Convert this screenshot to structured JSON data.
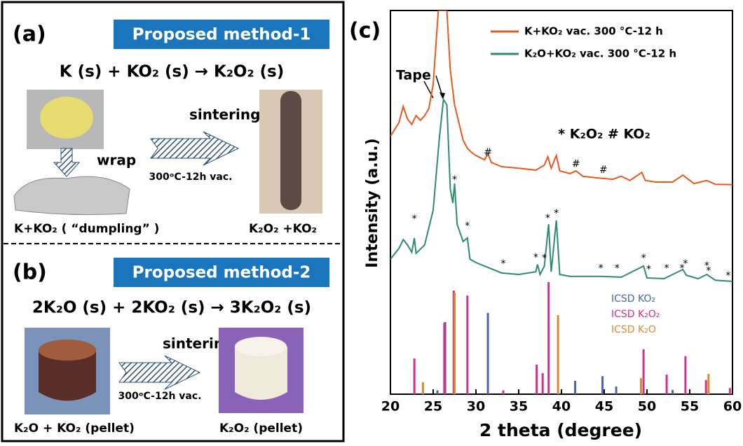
{
  "panels": {
    "a": {
      "label": "(a)",
      "title": "Proposed method-1",
      "equation": "K (s) + KO₂ (s) → K₂O₂ (s)",
      "wrap": "wrap",
      "step": "sintering",
      "condition": "300ᵒC-12h vac.",
      "left_caption": "K+KO₂ ( “dumpling” )",
      "right_caption": "K₂O₂ +KO₂"
    },
    "b": {
      "label": "(b)",
      "title": "Proposed method-2",
      "equation": "2K₂O (s) + 2KO₂ (s) → 3K₂O₂ (s)",
      "step": "sintering",
      "condition": "300ᵒC-12h vac.",
      "left_caption": "K₂O + KO₂ (pellet)",
      "right_caption": "K₂O₂ (pellet)"
    }
  },
  "chart_data": {
    "type": "line",
    "label": "(c)",
    "x_label": "2 theta (degree)",
    "y_label": "Intensity (a.u.)",
    "xlim": [
      20,
      60
    ],
    "xticks": [
      20,
      25,
      30,
      35,
      40,
      45,
      50,
      55,
      60
    ],
    "ylim": [
      0,
      100
    ],
    "legend": "top-right",
    "series": [
      {
        "name": "K+KO₂ vac. 300 °C-12 h",
        "color": "#e8591f",
        "x": [
          20,
          21,
          21.5,
          22,
          22.5,
          23,
          23.5,
          24,
          24.5,
          25,
          25.6,
          26.6,
          27,
          27.5,
          28,
          28.5,
          29,
          29.5,
          30,
          31,
          31.4,
          31.8,
          33,
          35,
          37,
          38,
          38.4,
          38.8,
          39.4,
          39.8,
          41,
          41.7,
          42.5,
          44,
          46,
          47,
          48,
          49.4,
          49.8,
          51,
          53,
          54.2,
          54.6,
          55.5,
          57,
          58,
          60
        ],
        "values": [
          67.2,
          70.8,
          75.0,
          71.7,
          70.3,
          72.6,
          71.4,
          72.6,
          74.5,
          80.8,
          100,
          100,
          84.5,
          75.4,
          70.8,
          66.2,
          64.1,
          63.0,
          62.2,
          61.1,
          62.6,
          60.4,
          59.3,
          58.9,
          58.4,
          59.7,
          61.9,
          58.9,
          62.2,
          58.2,
          57.5,
          58.2,
          56.8,
          56.4,
          56.0,
          56.8,
          55.7,
          57.8,
          55.7,
          55.3,
          55.3,
          57.1,
          56.4,
          54.9,
          55.7,
          54.7,
          54.6
        ]
      },
      {
        "name": "K₂O+KO₂ vac. 300 °C-12 h",
        "color": "#2e8b6e",
        "x": [
          20,
          21,
          21.5,
          22,
          22.5,
          22.8,
          23,
          24,
          25,
          25.7,
          26.2,
          26.6,
          27,
          27.3,
          27.5,
          27.8,
          28.5,
          29,
          29.3,
          30,
          32,
          33,
          35,
          37,
          37.2,
          37.5,
          38,
          38.5,
          38.8,
          39.4,
          39.8,
          41,
          44,
          44.6,
          47,
          49.6,
          50,
          52,
          54.2,
          54.6,
          56,
          57,
          58,
          60
        ],
        "values": [
          35.2,
          38.0,
          40.3,
          38.9,
          37.0,
          40.7,
          36.7,
          38.9,
          48.0,
          66.2,
          76.8,
          75.4,
          53.5,
          49.8,
          54.9,
          44.3,
          39.8,
          40.7,
          35.2,
          34.3,
          32.5,
          31.6,
          31.2,
          31.9,
          33.8,
          31.2,
          33.4,
          44.3,
          31.9,
          45.3,
          31.2,
          30.7,
          30.7,
          30.7,
          30.5,
          33.4,
          30.3,
          30.1,
          32.5,
          31.0,
          30.1,
          31.2,
          29.7,
          29.4
        ]
      }
    ],
    "references": [
      {
        "name": "ICSD KO₂",
        "color": "#4a66a8",
        "x": [
          25.5,
          26.4,
          31.4,
          41.6,
          44.8,
          46.4,
          53,
          57.2
        ],
        "values": [
          1,
          18.8,
          21.2,
          3.5,
          4.7,
          2,
          1.1,
          1
        ]
      },
      {
        "name": "ICSD K₂O₂",
        "color": "#d0308f",
        "x": [
          22.8,
          26.3,
          27.4,
          29,
          33.2,
          37.1,
          37.8,
          38.5,
          49.6,
          52.3,
          54.5,
          56.9,
          59.7
        ],
        "values": [
          9.3,
          18.6,
          27,
          25.7,
          1,
          7.7,
          5.5,
          29.2,
          11.7,
          5.1,
          9.9,
          3.7,
          1.6
        ]
      },
      {
        "name": "ICSD K₂O",
        "color": "#d98a2e",
        "x": [
          23.8,
          27.5,
          39.6,
          49.3,
          57.2
        ],
        "values": [
          3.1,
          26.5,
          20.6,
          4.2,
          5.3
        ]
      }
    ],
    "annotations": [
      {
        "text": "Tape",
        "x": 22.7,
        "y": 83.0
      },
      {
        "text": "* K₂O₂  # KO₂",
        "x": 45.0,
        "y": 67.7
      },
      {
        "text": "#",
        "x": 31.4,
        "y": 63.0
      },
      {
        "text": "#",
        "x": 41.7,
        "y": 59.9
      },
      {
        "text": "#",
        "x": 44.9,
        "y": 58.4
      },
      {
        "text": "*",
        "x": 22.8,
        "y": 45.6
      },
      {
        "text": "*",
        "x": 27.5,
        "y": 55.8
      },
      {
        "text": "*",
        "x": 29,
        "y": 43.8
      },
      {
        "text": "*",
        "x": 33.2,
        "y": 33.9
      },
      {
        "text": "*",
        "x": 37,
        "y": 35.6
      },
      {
        "text": "*",
        "x": 38,
        "y": 35.4
      },
      {
        "text": "*",
        "x": 38.4,
        "y": 45.8
      },
      {
        "text": "*",
        "x": 39.4,
        "y": 47.1
      },
      {
        "text": "*",
        "x": 44.6,
        "y": 32.8
      },
      {
        "text": "*",
        "x": 46.5,
        "y": 32.8
      },
      {
        "text": "*",
        "x": 49.6,
        "y": 35.4
      },
      {
        "text": "*",
        "x": 50.2,
        "y": 32.5
      },
      {
        "text": "*",
        "x": 52.3,
        "y": 32.8
      },
      {
        "text": "*",
        "x": 54.1,
        "y": 32.8
      },
      {
        "text": "*",
        "x": 54.5,
        "y": 33.9
      },
      {
        "text": "*",
        "x": 57,
        "y": 33.4
      },
      {
        "text": "*",
        "x": 57.2,
        "y": 32.1
      },
      {
        "text": "*",
        "x": 59.5,
        "y": 30.8
      }
    ]
  }
}
